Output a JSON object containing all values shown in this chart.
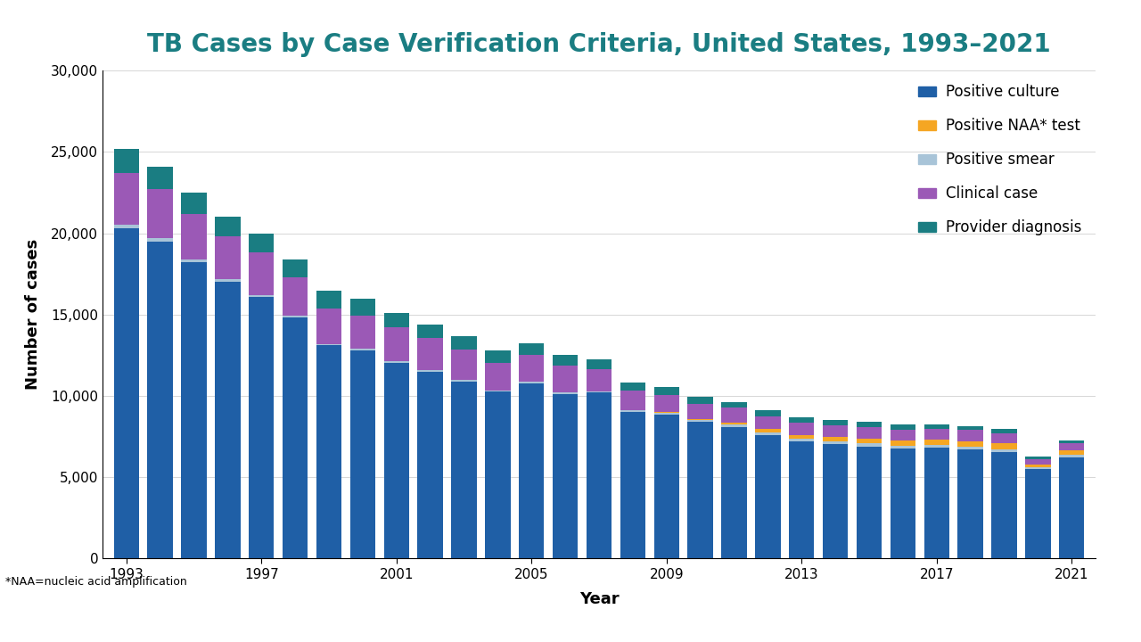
{
  "title": "TB Cases by Case Verification Criteria, United States, 1993–2021",
  "xlabel": "Year",
  "ylabel": "Number of cases",
  "footnote": "*NAA=nucleic acid amplification",
  "legend_labels": [
    "Positive culture",
    "Positive NAA² test",
    "Positive smear",
    "Clinical case",
    "Provider diagnosis"
  ],
  "legend_labels_display": [
    "Positive culture",
    "Positive NAA* test",
    "Positive smear",
    "Clinical case",
    "Provider diagnosis"
  ],
  "colors": {
    "positive_culture": "#1F5FA6",
    "positive_smear": "#A8C4D8",
    "positive_naa": "#F5A623",
    "clinical_case": "#9B59B6",
    "provider_diagnosis": "#1A7D82"
  },
  "years": [
    1993,
    1994,
    1995,
    1996,
    1997,
    1998,
    1999,
    2000,
    2001,
    2002,
    2003,
    2004,
    2005,
    2006,
    2007,
    2008,
    2009,
    2010,
    2011,
    2012,
    2013,
    2014,
    2015,
    2016,
    2017,
    2018,
    2019,
    2020,
    2021
  ],
  "positive_culture": [
    20300,
    19500,
    18200,
    17000,
    16100,
    14850,
    13100,
    12800,
    12050,
    11500,
    10900,
    10250,
    10750,
    10100,
    10200,
    9000,
    8850,
    8400,
    8100,
    7600,
    7200,
    7050,
    6900,
    6750,
    6800,
    6700,
    6550,
    5500,
    6244
  ],
  "positive_smear": [
    200,
    200,
    200,
    200,
    100,
    100,
    100,
    100,
    100,
    100,
    100,
    100,
    100,
    100,
    100,
    100,
    100,
    100,
    130,
    150,
    150,
    150,
    170,
    170,
    180,
    180,
    180,
    100,
    130
  ],
  "positive_naa": [
    0,
    0,
    0,
    0,
    0,
    0,
    0,
    0,
    0,
    0,
    0,
    0,
    0,
    0,
    0,
    30,
    50,
    100,
    150,
    200,
    250,
    280,
    300,
    320,
    330,
    350,
    360,
    180,
    270
  ],
  "clinical_case": [
    3200,
    3000,
    2800,
    2600,
    2600,
    2350,
    2200,
    2050,
    2050,
    1950,
    1850,
    1700,
    1650,
    1680,
    1370,
    1180,
    1080,
    930,
    880,
    790,
    740,
    720,
    720,
    700,
    680,
    660,
    630,
    350,
    430
  ],
  "provider_diagnosis": [
    1500,
    1400,
    1300,
    1200,
    1200,
    1100,
    1050,
    1050,
    900,
    850,
    800,
    760,
    710,
    650,
    570,
    520,
    470,
    420,
    380,
    360,
    340,
    320,
    310,
    300,
    280,
    270,
    260,
    160,
    200
  ],
  "background_color": "#ffffff",
  "title_color": "#1A7D82",
  "title_fontsize": 20,
  "axis_label_fontsize": 13,
  "tick_fontsize": 11,
  "legend_fontsize": 12,
  "ylim": [
    0,
    30000
  ],
  "yticks": [
    0,
    5000,
    10000,
    15000,
    20000,
    25000,
    30000
  ],
  "xtick_years": [
    1993,
    1997,
    2001,
    2005,
    2009,
    2013,
    2017,
    2021
  ],
  "footer_bar_colors": [
    "#1A7D82",
    "#9B59B6",
    "#c0392b",
    "#A8C4D8",
    "#F5A623",
    "#1F5FA6"
  ],
  "footer_bar_widths": [
    0.45,
    0.11,
    0.11,
    0.11,
    0.11,
    0.11
  ]
}
